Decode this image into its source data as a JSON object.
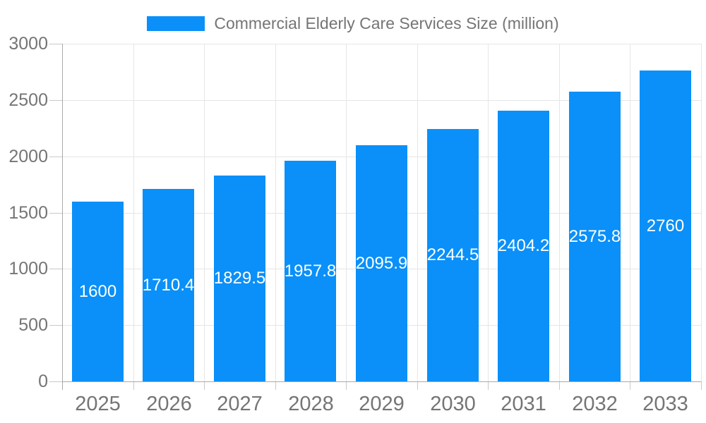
{
  "legend": {
    "swatch_color": "#0a90f8",
    "label": "Commercial Elderly Care Services Size (million)"
  },
  "chart_data": {
    "type": "bar",
    "title": "Commercial Elderly Care Services Size (million)",
    "categories": [
      "2025",
      "2026",
      "2027",
      "2028",
      "2029",
      "2030",
      "2031",
      "2032",
      "2033"
    ],
    "values": [
      1600,
      1710.4,
      1829.5,
      1957.8,
      2095.9,
      2244.5,
      2404.2,
      2575.8,
      2760
    ],
    "xlabel": "",
    "ylabel": "",
    "ylim": [
      0,
      3000
    ],
    "y_ticks": [
      0,
      500,
      1000,
      1500,
      2000,
      2500,
      3000
    ],
    "grid": true,
    "legend_position": "top",
    "value_label_position": "inside-center"
  },
  "colors": {
    "bar": "#0a90f8",
    "grid": "#e6e6e6",
    "tick": "#c9c9c9",
    "axis": "#a9a9a9",
    "label": "#757575",
    "value_label": "#ffffff",
    "background": "#ffffff"
  }
}
